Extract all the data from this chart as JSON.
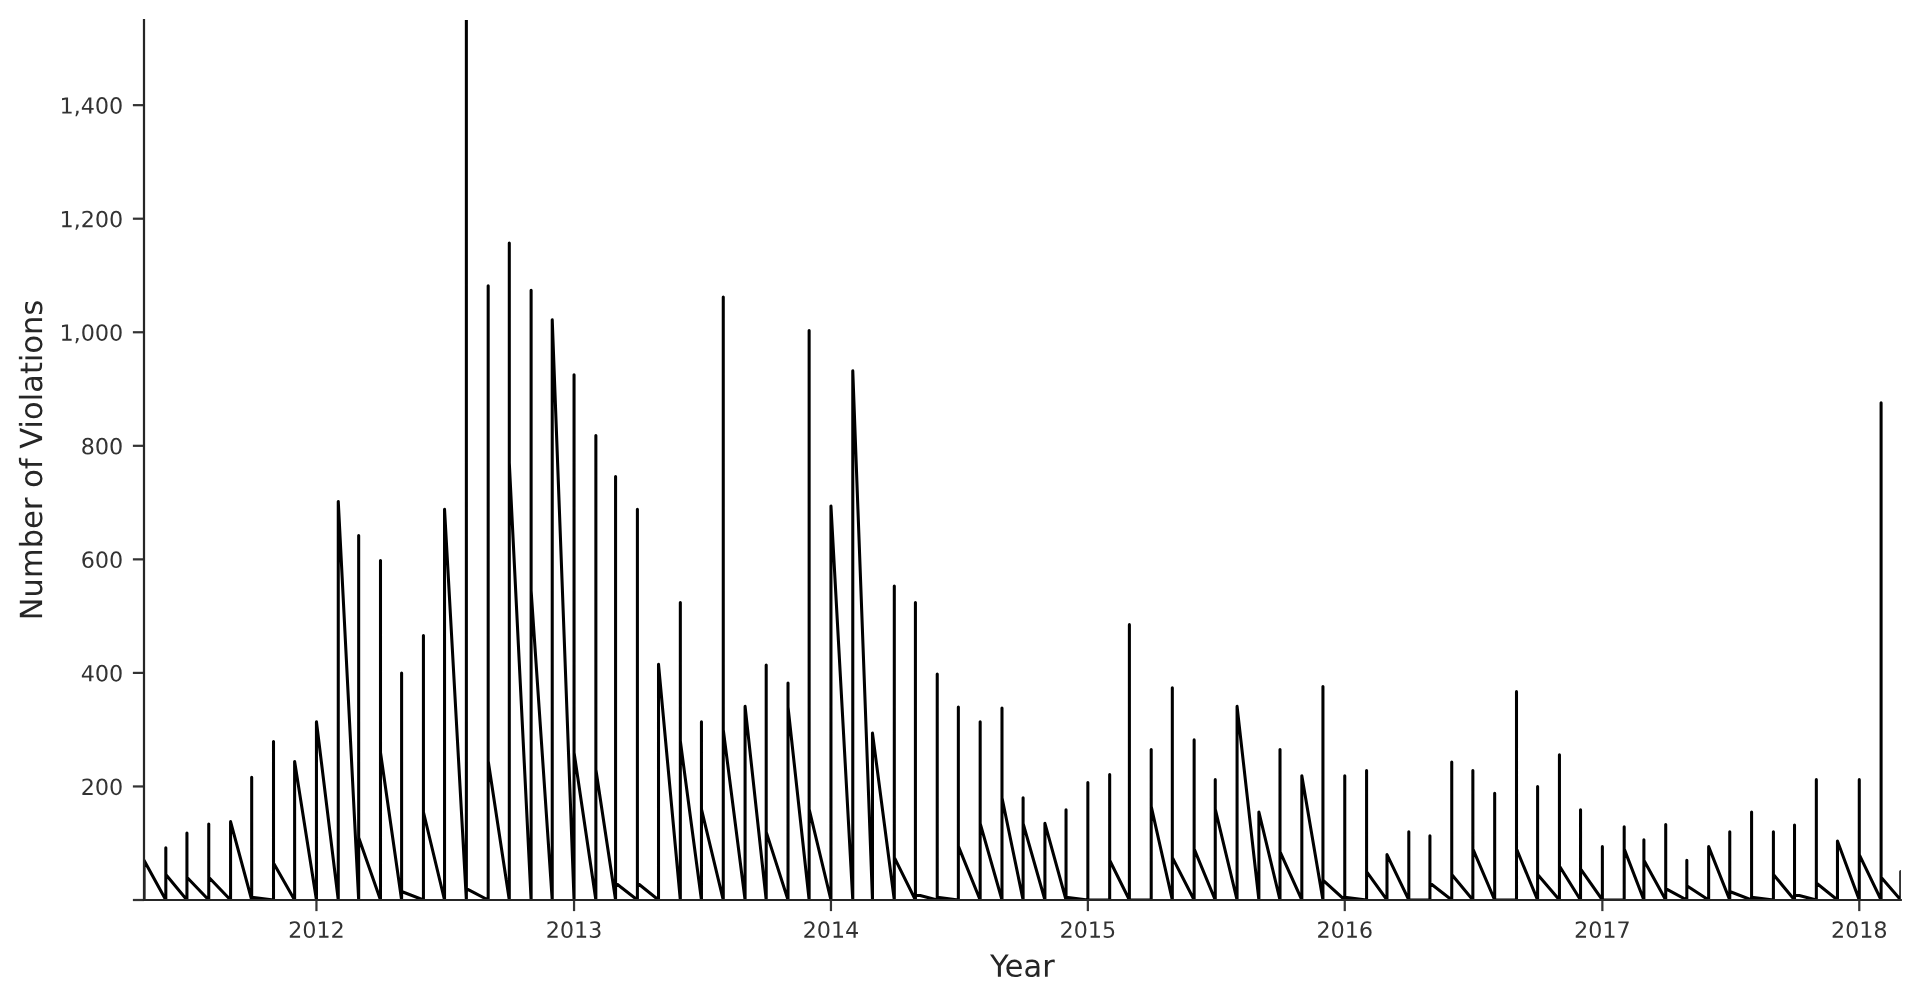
{
  "chart_data": {
    "type": "line",
    "xlabel": "Year",
    "ylabel": "Number of Violations",
    "xlim": [
      "2011-05-01",
      "2018-03-01"
    ],
    "xticks": [
      "2012",
      "2013",
      "2014",
      "2015",
      "2016",
      "2017",
      "2018"
    ],
    "ylim": [
      0,
      1550
    ],
    "yticks": [
      {
        "value": 0,
        "label": null
      },
      200,
      400,
      600,
      800,
      {
        "value": 1000,
        "label": "1,000"
      },
      {
        "value": 1200,
        "label": "1,200"
      },
      {
        "value": 1400,
        "label": "1,400"
      }
    ],
    "grid": false,
    "legend": false,
    "marker": "none",
    "line_style": "solid",
    "series": [
      {
        "color": "#000000",
        "x": [
          "2011-05",
          "2011-05",
          "2011-05",
          "2011-06",
          "2011-06",
          "2011-06",
          "2011-07",
          "2011-07",
          "2011-07",
          "2011-08",
          "2011-08",
          "2011-08",
          "2011-09",
          "2011-09",
          "2011-09",
          "2011-10",
          "2011-10",
          "2011-10",
          "2011-11",
          "2011-11",
          "2011-11",
          "2011-12",
          "2011-12",
          "2011-12",
          "2012-01",
          "2012-01",
          "2012-01",
          "2012-02",
          "2012-02",
          "2012-02",
          "2012-03",
          "2012-03",
          "2012-03",
          "2012-04",
          "2012-04",
          "2012-04",
          "2012-05",
          "2012-05",
          "2012-05",
          "2012-06",
          "2012-06",
          "2012-06",
          "2012-07",
          "2012-07",
          "2012-07",
          "2012-08",
          "2012-08",
          "2012-08",
          "2012-09",
          "2012-09",
          "2012-09",
          "2012-10",
          "2012-10",
          "2012-10",
          "2012-11",
          "2012-11",
          "2012-11",
          "2012-12",
          "2012-12",
          "2012-12",
          "2013-01",
          "2013-01",
          "2013-01",
          "2013-02",
          "2013-02",
          "2013-02",
          "2013-03",
          "2013-03",
          "2013-03",
          "2013-04",
          "2013-04",
          "2013-04",
          "2013-05",
          "2013-05",
          "2013-05",
          "2013-06",
          "2013-06",
          "2013-06",
          "2013-07",
          "2013-07",
          "2013-07",
          "2013-08",
          "2013-08",
          "2013-08",
          "2013-09",
          "2013-09",
          "2013-09",
          "2013-10",
          "2013-10",
          "2013-10",
          "2013-11",
          "2013-11",
          "2013-11",
          "2013-12",
          "2013-12",
          "2013-12",
          "2014-01",
          "2014-01",
          "2014-01",
          "2014-02",
          "2014-02",
          "2014-02",
          "2014-03",
          "2014-03",
          "2014-03",
          "2014-04",
          "2014-04",
          "2014-04",
          "2014-05",
          "2014-05",
          "2014-05",
          "2014-06",
          "2014-06",
          "2014-06",
          "2014-07",
          "2014-07",
          "2014-07",
          "2014-08",
          "2014-08",
          "2014-08",
          "2014-09",
          "2014-09",
          "2014-09",
          "2014-10",
          "2014-10",
          "2014-10",
          "2014-11",
          "2014-11",
          "2014-11",
          "2014-12",
          "2014-12",
          "2014-12",
          "2015-01",
          "2015-01",
          "2015-01",
          "2015-02",
          "2015-02",
          "2015-02",
          "2015-03",
          "2015-03",
          "2015-03",
          "2015-04",
          "2015-04",
          "2015-04",
          "2015-05",
          "2015-05",
          "2015-05",
          "2015-06",
          "2015-06",
          "2015-06",
          "2015-07",
          "2015-07",
          "2015-07",
          "2015-08",
          "2015-08",
          "2015-08",
          "2015-09",
          "2015-09",
          "2015-09",
          "2015-10",
          "2015-10",
          "2015-10",
          "2015-11",
          "2015-11",
          "2015-11",
          "2015-12",
          "2015-12",
          "2015-12",
          "2016-01",
          "2016-01",
          "2016-01",
          "2016-02",
          "2016-02",
          "2016-02",
          "2016-03",
          "2016-03",
          "2016-03",
          "2016-04",
          "2016-04",
          "2016-04",
          "2016-05",
          "2016-05",
          "2016-05",
          "2016-06",
          "2016-06",
          "2016-06",
          "2016-07",
          "2016-07",
          "2016-07",
          "2016-08",
          "2016-08",
          "2016-08",
          "2016-09",
          "2016-09",
          "2016-09",
          "2016-10",
          "2016-10",
          "2016-10",
          "2016-11",
          "2016-11",
          "2016-11",
          "2016-12",
          "2016-12",
          "2016-12",
          "2017-01",
          "2017-01",
          "2017-01",
          "2017-02",
          "2017-02",
          "2017-02",
          "2017-03",
          "2017-03",
          "2017-03",
          "2017-04",
          "2017-04",
          "2017-04",
          "2017-05",
          "2017-05",
          "2017-05",
          "2017-06",
          "2017-06",
          "2017-06",
          "2017-07",
          "2017-07",
          "2017-07",
          "2017-08",
          "2017-08",
          "2017-08",
          "2017-09",
          "2017-09",
          "2017-09",
          "2017-10",
          "2017-10",
          "2017-10",
          "2017-11",
          "2017-11",
          "2017-11",
          "2017-12",
          "2017-12",
          "2017-12",
          "2018-01",
          "2018-01",
          "2018-01",
          "2018-02",
          "2018-02",
          "2018-02",
          "2018-03",
          "2018-03"
        ],
        "values": [
          0,
          70,
          70,
          0,
          92,
          45,
          0,
          118,
          40,
          0,
          134,
          40,
          0,
          138,
          138,
          0,
          216,
          5,
          0,
          279,
          65,
          0,
          244,
          244,
          0,
          314,
          314,
          0,
          702,
          702,
          0,
          642,
          110,
          0,
          598,
          260,
          0,
          400,
          15,
          0,
          466,
          155,
          0,
          688,
          688,
          0,
          1550,
          20,
          0,
          1082,
          245,
          0,
          1157,
          770,
          0,
          1074,
          545,
          0,
          1022,
          1022,
          0,
          925,
          260,
          0,
          818,
          230,
          0,
          746,
          30,
          0,
          688,
          30,
          0,
          415,
          415,
          0,
          524,
          280,
          0,
          314,
          160,
          0,
          1062,
          300,
          0,
          341,
          341,
          0,
          414,
          120,
          0,
          382,
          340,
          0,
          1003,
          160,
          0,
          694,
          694,
          0,
          932,
          932,
          0,
          294,
          294,
          0,
          553,
          75,
          0,
          524,
          10,
          0,
          398,
          5,
          0,
          340,
          95,
          0,
          314,
          135,
          0,
          338,
          180,
          0,
          180,
          135,
          0,
          135,
          135,
          0,
          159,
          5,
          0,
          207,
          0,
          0,
          221,
          70,
          0,
          485,
          0,
          0,
          265,
          165,
          0,
          374,
          75,
          0,
          282,
          90,
          0,
          212,
          160,
          0,
          341,
          341,
          0,
          155,
          155,
          0,
          265,
          85,
          0,
          219,
          219,
          0,
          376,
          35,
          0,
          219,
          5,
          0,
          228,
          50,
          0,
          80,
          80,
          0,
          120,
          0,
          0,
          113,
          30,
          0,
          243,
          45,
          0,
          228,
          90,
          0,
          188,
          0,
          0,
          367,
          90,
          0,
          200,
          45,
          0,
          256,
          60,
          0,
          159,
          55,
          0,
          94,
          0,
          0,
          129,
          90,
          0,
          106,
          70,
          0,
          133,
          20,
          0,
          70,
          25,
          0,
          94,
          94,
          0,
          120,
          15,
          0,
          155,
          5,
          0,
          120,
          45,
          0,
          132,
          10,
          0,
          212,
          30,
          0,
          104,
          104,
          0,
          212,
          80,
          0,
          876,
          40,
          0,
          50
        ]
      }
    ]
  }
}
